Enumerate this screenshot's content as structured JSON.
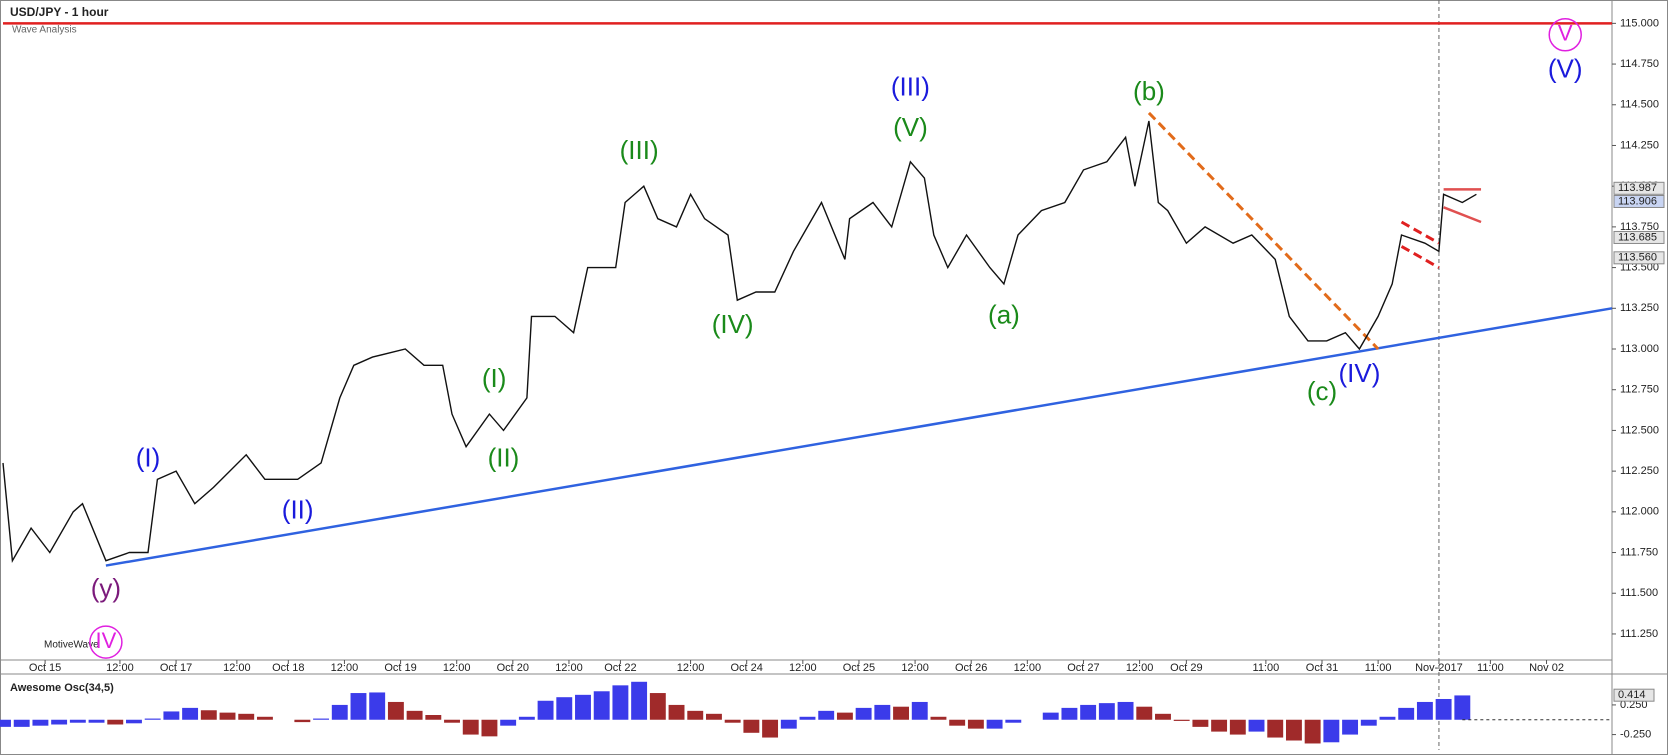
{
  "header": {
    "title": "USD/JPY - 1 hour",
    "subtitle": "Wave Analysis",
    "brand": "MotiveWave"
  },
  "chart_data": [
    {
      "type": "line",
      "color": "#111111",
      "x": [
        0,
        2,
        6,
        10,
        15,
        17,
        22,
        27,
        31,
        33,
        37,
        41,
        45,
        52,
        56,
        63,
        68,
        72,
        75,
        79,
        86,
        90,
        94,
        96,
        99,
        104,
        107,
        112,
        113,
        118,
        122,
        125,
        131,
        133,
        137,
        140,
        144,
        147,
        150,
        155,
        157,
        161,
        165,
        169,
        172,
        175,
        180,
        181,
        186,
        190,
        194,
        197,
        199,
        202,
        206,
        211,
        214,
        217,
        222,
        227,
        231,
        236,
        240,
        242,
        245,
        247,
        249,
        253,
        257,
        263,
        267,
        272,
        275,
        279,
        283,
        287,
        290,
        294,
        297,
        299,
        304,
        307,
        308,
        312,
        315
      ],
      "values": [
        112.3,
        111.7,
        111.9,
        111.75,
        112.0,
        112.05,
        111.7,
        111.75,
        111.75,
        112.2,
        112.25,
        112.05,
        112.15,
        112.35,
        112.2,
        112.2,
        112.3,
        112.7,
        112.9,
        112.95,
        113.0,
        112.9,
        112.9,
        112.6,
        112.4,
        112.6,
        112.5,
        112.7,
        113.2,
        113.2,
        113.1,
        113.5,
        113.5,
        113.9,
        114.0,
        113.8,
        113.75,
        113.95,
        113.8,
        113.7,
        113.3,
        113.35,
        113.35,
        113.6,
        113.75,
        113.9,
        113.55,
        113.8,
        113.9,
        113.75,
        114.15,
        114.05,
        113.7,
        113.5,
        113.7,
        113.5,
        113.4,
        113.7,
        113.85,
        113.9,
        114.1,
        114.15,
        114.3,
        114.0,
        114.4,
        113.9,
        113.85,
        113.65,
        113.75,
        113.65,
        113.7,
        113.55,
        113.2,
        113.05,
        113.05,
        113.1,
        113.0,
        113.2,
        113.4,
        113.7,
        113.65,
        113.6,
        113.95,
        113.9,
        113.95
      ],
      "xlim": [
        0,
        344
      ],
      "xticks": [
        {
          "value": 9,
          "label": "Oct 15"
        },
        {
          "value": 25,
          "label": "12:00"
        },
        {
          "value": 37,
          "label": "Oct 17"
        },
        {
          "value": 50,
          "label": "12:00"
        },
        {
          "value": 61,
          "label": "Oct 18"
        },
        {
          "value": 73,
          "label": "12:00"
        },
        {
          "value": 85,
          "label": "Oct 19"
        },
        {
          "value": 97,
          "label": "12:00"
        },
        {
          "value": 109,
          "label": "Oct 20"
        },
        {
          "value": 121,
          "label": "12:00"
        },
        {
          "value": 132,
          "label": "Oct 22"
        },
        {
          "value": 147,
          "label": "12:00"
        },
        {
          "value": 159,
          "label": "Oct 24"
        },
        {
          "value": 171,
          "label": "12:00"
        },
        {
          "value": 183,
          "label": "Oct 25"
        },
        {
          "value": 195,
          "label": "12:00"
        },
        {
          "value": 207,
          "label": "Oct 26"
        },
        {
          "value": 219,
          "label": "12:00"
        },
        {
          "value": 231,
          "label": "Oct 27"
        },
        {
          "value": 243,
          "label": "12:00"
        },
        {
          "value": 253,
          "label": "Oct 29"
        },
        {
          "value": 270,
          "label": "11:00"
        },
        {
          "value": 282,
          "label": "Oct 31"
        },
        {
          "value": 294,
          "label": "11:00"
        },
        {
          "value": 307,
          "label": "Nov-2017"
        },
        {
          "value": 318,
          "label": "11:00"
        },
        {
          "value": 330,
          "label": "Nov 02"
        }
      ],
      "ylim": [
        111.09,
        115.125
      ],
      "yticks": [
        {
          "value": 111.25,
          "label": "111.250"
        },
        {
          "value": 111.5,
          "label": "111.500"
        },
        {
          "value": 111.75,
          "label": "111.750"
        },
        {
          "value": 112,
          "label": "112.000"
        },
        {
          "value": 112.25,
          "label": "112.250"
        },
        {
          "value": 112.5,
          "label": "112.500"
        },
        {
          "value": 112.75,
          "label": "112.750"
        },
        {
          "value": 113,
          "label": "113.000"
        },
        {
          "value": 113.25,
          "label": "113.250"
        },
        {
          "value": 113.5,
          "label": "113.500"
        },
        {
          "value": 113.75,
          "label": "113.750"
        },
        {
          "value": 114,
          "label": "114.000"
        },
        {
          "value": 114.25,
          "label": "114.250"
        },
        {
          "value": 114.5,
          "label": "114.500"
        },
        {
          "value": 114.75,
          "label": "114.750"
        },
        {
          "value": 115,
          "label": "115.000"
        }
      ],
      "price_labels": [
        113.987,
        113.906,
        113.685,
        {
          "value": 113.56,
          "label": "113.560"
        }
      ],
      "divider_x": 307,
      "trend_lines": [
        {
          "color": "#2f62e0",
          "dash": false,
          "x": [
            22,
            344
          ],
          "y": [
            111.67,
            113.25
          ]
        },
        {
          "color": "#e26b1a",
          "dash": true,
          "x": [
            245,
            294
          ],
          "y": [
            114.45,
            113.0
          ]
        },
        {
          "color": "#e02020",
          "dash": false,
          "x": [
            0,
            344
          ],
          "y": [
            115,
            115
          ]
        },
        {
          "color": "#e05050",
          "dash": false,
          "x": [
            308,
            316
          ],
          "y": [
            113.98,
            113.98
          ]
        },
        {
          "color": "#e05050",
          "dash": false,
          "x": [
            308,
            316
          ],
          "y": [
            113.87,
            113.78
          ]
        },
        {
          "color": "#e02020",
          "dash": true,
          "x": [
            299,
            307
          ],
          "y": [
            113.78,
            113.65
          ]
        },
        {
          "color": "#e02020",
          "dash": true,
          "x": [
            299,
            307
          ],
          "y": [
            113.63,
            113.5
          ]
        }
      ],
      "annotations": [
        {
          "text": "(y)",
          "color": "#7b1a7b",
          "x": 22,
          "y": 111.52,
          "circle": false
        },
        {
          "text": "IV",
          "color": "#e020e0",
          "x": 22,
          "y": 111.2,
          "circle": true
        },
        {
          "text": "(I)",
          "color": "#1a1adc",
          "x": 31,
          "y": 112.32,
          "circle": false
        },
        {
          "text": "(II)",
          "color": "#1a1adc",
          "x": 63,
          "y": 112.0,
          "circle": false
        },
        {
          "text": "(I)",
          "color": "#1a8a1a",
          "x": 105,
          "y": 112.81,
          "circle": false
        },
        {
          "text": "(II)",
          "color": "#1a8a1a",
          "x": 107,
          "y": 112.32,
          "circle": false
        },
        {
          "text": "(III)",
          "color": "#1a8a1a",
          "x": 136,
          "y": 114.21,
          "circle": false
        },
        {
          "text": "(IV)",
          "color": "#1a8a1a",
          "x": 156,
          "y": 113.14,
          "circle": false
        },
        {
          "text": "(V)",
          "color": "#1a8a1a",
          "x": 194,
          "y": 114.35,
          "circle": false
        },
        {
          "text": "(III)",
          "color": "#1a1adc",
          "x": 194,
          "y": 114.6,
          "circle": false
        },
        {
          "text": "(a)",
          "color": "#1a8a1a",
          "x": 214,
          "y": 113.2,
          "circle": false
        },
        {
          "text": "(b)",
          "color": "#1a8a1a",
          "x": 245,
          "y": 114.57,
          "circle": false
        },
        {
          "text": "(c)",
          "color": "#1a8a1a",
          "x": 282,
          "y": 112.73,
          "circle": false
        },
        {
          "text": "(IV)",
          "color": "#1a1adc",
          "x": 290,
          "y": 112.84,
          "circle": false
        },
        {
          "text": "(V)",
          "color": "#1a1adc",
          "x": 334,
          "y": 114.71,
          "circle": false
        },
        {
          "text": "V",
          "color": "#e020e0",
          "x": 334,
          "y": 114.93,
          "circle": true
        }
      ]
    },
    {
      "type": "bar",
      "title": "Awesome Osc(34,5)",
      "up_color": "#3b3bea",
      "down_color": "#a02a2a",
      "x": [
        0,
        4,
        8,
        12,
        16,
        20,
        24,
        28,
        32,
        36,
        40,
        44,
        48,
        52,
        56,
        60,
        64,
        68,
        72,
        76,
        80,
        84,
        88,
        92,
        96,
        100,
        104,
        108,
        112,
        116,
        120,
        124,
        128,
        132,
        136,
        140,
        144,
        148,
        152,
        156,
        160,
        164,
        168,
        172,
        176,
        180,
        184,
        188,
        192,
        196,
        200,
        204,
        208,
        212,
        216,
        220,
        224,
        228,
        232,
        236,
        240,
        244,
        248,
        252,
        256,
        260,
        264,
        268,
        272,
        276,
        280,
        284,
        288,
        292,
        296,
        300,
        304,
        308,
        312
      ],
      "values": [
        -0.12,
        -0.12,
        -0.1,
        -0.08,
        -0.05,
        -0.05,
        -0.08,
        -0.06,
        0.02,
        0.14,
        0.2,
        0.16,
        0.12,
        0.1,
        0.05,
        0.0,
        -0.04,
        0.02,
        0.25,
        0.45,
        0.46,
        0.3,
        0.15,
        0.08,
        -0.05,
        -0.25,
        -0.28,
        -0.1,
        0.05,
        0.32,
        0.38,
        0.42,
        0.48,
        0.58,
        0.64,
        0.45,
        0.25,
        0.15,
        0.1,
        -0.05,
        -0.22,
        -0.3,
        -0.15,
        0.05,
        0.15,
        0.12,
        0.2,
        0.25,
        0.22,
        0.3,
        0.05,
        -0.1,
        -0.15,
        -0.15,
        -0.05,
        0.0,
        0.12,
        0.2,
        0.25,
        0.28,
        0.3,
        0.22,
        0.1,
        -0.02,
        -0.12,
        -0.2,
        -0.25,
        -0.2,
        -0.3,
        -0.35,
        -0.4,
        -0.38,
        -0.25,
        -0.1,
        0.05,
        0.2,
        0.3,
        0.35,
        0.41
      ],
      "xlim": [
        0,
        344
      ],
      "ylim": [
        -0.51,
        0.67
      ],
      "yticks": [
        {
          "value": 0.25,
          "label": "0.250"
        },
        {
          "value": -0.25,
          "label": "-0.250"
        }
      ],
      "last_value_label": 0.414
    }
  ]
}
